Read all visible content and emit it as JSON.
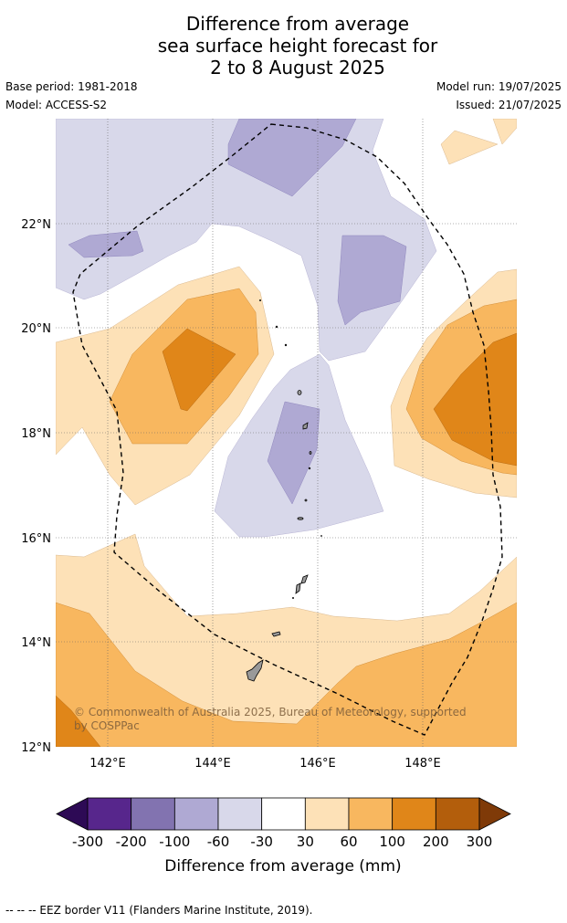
{
  "title": {
    "line1": "Difference from average",
    "line2": "sea surface height forecast for",
    "line3": "2 to 8 August 2025"
  },
  "meta": {
    "base_period": "Base period: 1981-2018",
    "model": "Model: ACCESS-S2",
    "model_run": "Model run: 19/07/2025",
    "issued": "Issued: 21/07/2025"
  },
  "map": {
    "lon_range": [
      141,
      149.8
    ],
    "lat_range": [
      12,
      24
    ],
    "lon_ticks": [
      "142°E",
      "144°E",
      "146°E",
      "148°E"
    ],
    "lat_ticks": [
      "12°N",
      "14°N",
      "16°N",
      "18°N",
      "20°N",
      "22°N"
    ],
    "copyright_line1": "© Commonwealth of Australia 2025, Bureau of Meteorology, supported",
    "copyright_line2": "by COSPPac",
    "eez_border_style": "dashed"
  },
  "colorbar": {
    "label": "Difference from average (mm)",
    "ticks": [
      "-300",
      "-200",
      "-100",
      "-60",
      "-30",
      "30",
      "60",
      "100",
      "200",
      "300"
    ],
    "colors": [
      "#2d0a55",
      "#57268c",
      "#8273b0",
      "#afa9d3",
      "#d8d8ea",
      "#ffffff",
      "#fde1b7",
      "#f8b75f",
      "#e08619",
      "#b35e0c",
      "#7f3a08"
    ]
  },
  "footnote": "--  --  -- EEZ border V11 (Flanders Marine Institute, 2019)."
}
